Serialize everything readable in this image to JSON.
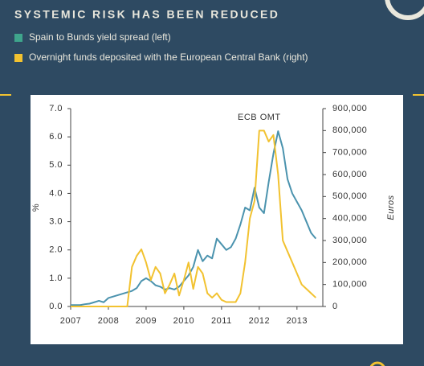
{
  "chart_data": {
    "type": "line",
    "title": "SYSTEMIC RISK HAS BEEN REDUCED",
    "annotation": "ECB OMT",
    "ylabel": "%",
    "y2label": "Euros",
    "legend": "top-left",
    "grid": false,
    "x": [
      2007.0,
      2007.125,
      2007.25,
      2007.375,
      2007.5,
      2007.625,
      2007.75,
      2007.875,
      2008.0,
      2008.125,
      2008.25,
      2008.375,
      2008.5,
      2008.625,
      2008.75,
      2008.875,
      2009.0,
      2009.125,
      2009.25,
      2009.375,
      2009.5,
      2009.625,
      2009.75,
      2009.875,
      2010.0,
      2010.125,
      2010.25,
      2010.375,
      2010.5,
      2010.625,
      2010.75,
      2010.875,
      2011.0,
      2011.125,
      2011.25,
      2011.375,
      2011.5,
      2011.625,
      2011.75,
      2011.875,
      2012.0,
      2012.125,
      2012.25,
      2012.375,
      2012.5,
      2012.625,
      2012.75,
      2012.875,
      2013.0,
      2013.125,
      2013.25,
      2013.375,
      2013.5
    ],
    "series": [
      {
        "name": "Spain to Bunds yield spread (left)",
        "color": "#4b93ae",
        "legend_color": "#3fa58c",
        "values": [
          0.05,
          0.05,
          0.05,
          0.08,
          0.1,
          0.15,
          0.2,
          0.15,
          0.3,
          0.35,
          0.4,
          0.45,
          0.5,
          0.55,
          0.65,
          0.9,
          1.0,
          0.9,
          0.75,
          0.7,
          0.6,
          0.65,
          0.6,
          0.7,
          0.9,
          1.1,
          1.4,
          2.0,
          1.6,
          1.8,
          1.7,
          2.4,
          2.2,
          2.0,
          2.1,
          2.4,
          2.9,
          3.5,
          3.4,
          4.2,
          3.5,
          3.3,
          4.4,
          5.4,
          6.2,
          5.6,
          4.5,
          4.0,
          3.7,
          3.4,
          3.0,
          2.6,
          2.4
        ]
      },
      {
        "name": "Overnight funds deposited with the European Central Bank (right)",
        "color": "#f2c230",
        "axis": "y2",
        "values": [
          0,
          0,
          0,
          0,
          0,
          0,
          0,
          0,
          0,
          0,
          0,
          0,
          0,
          180000,
          230000,
          260000,
          200000,
          120000,
          180000,
          150000,
          60000,
          100000,
          150000,
          50000,
          120000,
          200000,
          80000,
          180000,
          150000,
          60000,
          40000,
          60000,
          30000,
          20000,
          20000,
          20000,
          60000,
          200000,
          400000,
          480000,
          800000,
          800000,
          750000,
          780000,
          600000,
          300000,
          250000,
          200000,
          150000,
          100000,
          80000,
          60000,
          40000
        ]
      }
    ],
    "xlim": [
      2007,
      2013.6
    ],
    "xticks": [
      2007,
      2008,
      2009,
      2010,
      2011,
      2012,
      2013
    ],
    "ylim": [
      0,
      7
    ],
    "yticks": [
      {
        "value": 0,
        "label": "0.0"
      },
      {
        "value": 1,
        "label": "1.0"
      },
      {
        "value": 2,
        "label": "2.0"
      },
      {
        "value": 3,
        "label": "3.0"
      },
      {
        "value": 4,
        "label": "4.0"
      },
      {
        "value": 5,
        "label": "5.0"
      },
      {
        "value": 6,
        "label": "6.0"
      },
      {
        "value": 7,
        "label": "7.0"
      }
    ],
    "y2lim": [
      0,
      900000
    ],
    "y2ticks": [
      0,
      {
        "value": 100000,
        "label": "100,000"
      },
      {
        "value": 200000,
        "label": "200,000"
      },
      {
        "value": 300000,
        "label": "300,000"
      },
      {
        "value": 400000,
        "label": "400,000"
      },
      {
        "value": 500000,
        "label": "500,000"
      },
      {
        "value": 600000,
        "label": "600,000"
      },
      {
        "value": 700000,
        "label": "700,000"
      },
      {
        "value": 800000,
        "label": "800,000"
      },
      {
        "value": 900000,
        "label": "900,000"
      }
    ],
    "annotation_x": 2012.0
  }
}
